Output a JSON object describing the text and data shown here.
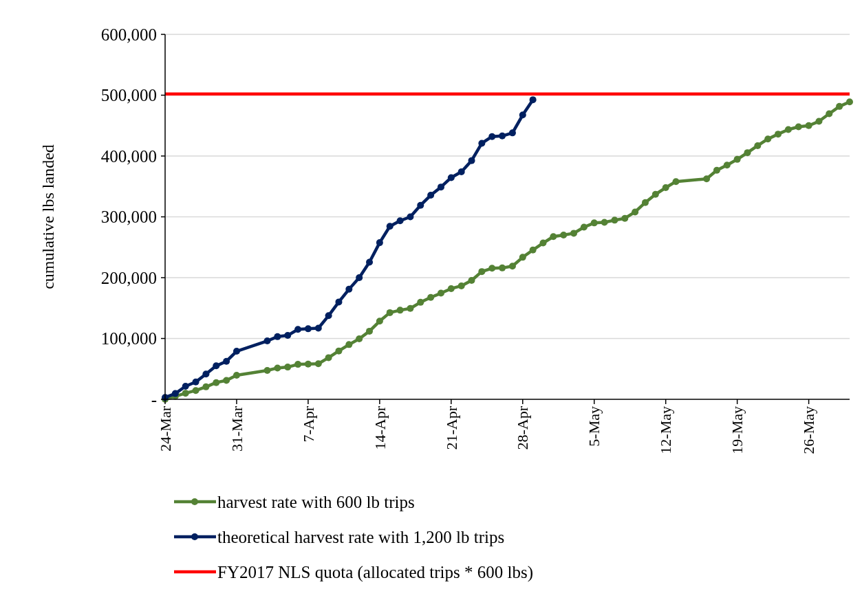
{
  "chart_data": {
    "type": "line",
    "ylabel": "cumulative lbs landed",
    "xlim": [
      "--03-24",
      "--05-30"
    ],
    "xticks": [
      {
        "value": "--03-24",
        "label": "24-Mar"
      },
      {
        "value": "--03-31",
        "label": "31-Mar"
      },
      {
        "value": "--04-07",
        "label": "7-Apr"
      },
      {
        "value": "--04-14",
        "label": "14-Apr"
      },
      {
        "value": "--04-21",
        "label": "21-Apr"
      },
      {
        "value": "--04-28",
        "label": "28-Apr"
      },
      {
        "value": "--05-05",
        "label": "5-May"
      },
      {
        "value": "--05-12",
        "label": "12-May"
      },
      {
        "value": "--05-19",
        "label": "19-May"
      },
      {
        "value": "--05-26",
        "label": "26-May"
      }
    ],
    "ylim": [
      0,
      600000
    ],
    "yticks": [
      {
        "value": 0,
        "label": "-"
      },
      {
        "value": 100000,
        "label": "100,000"
      },
      {
        "value": 200000,
        "label": "200,000"
      },
      {
        "value": 300000,
        "label": "300,000"
      },
      {
        "value": 400000,
        "label": "400,000"
      },
      {
        "value": 500000,
        "label": "500,000"
      },
      {
        "value": 600000,
        "label": "600,000"
      }
    ],
    "grid": "y",
    "marker": "circle",
    "legend": "bottom",
    "series": [
      {
        "name": "harvest rate with 600 lb trips",
        "color": "#548235",
        "x": [
          "--03-24",
          "--03-25",
          "--03-26",
          "--03-27",
          "--03-28",
          "--03-29",
          "--03-30",
          "--03-31",
          "--04-03",
          "--04-04",
          "--04-05",
          "--04-06",
          "--04-07",
          "--04-08",
          "--04-09",
          "--04-10",
          "--04-11",
          "--04-12",
          "--04-13",
          "--04-14",
          "--04-15",
          "--04-16",
          "--04-17",
          "--04-18",
          "--04-19",
          "--04-20",
          "--04-21",
          "--04-22",
          "--04-23",
          "--04-24",
          "--04-25",
          "--04-26",
          "--04-27",
          "--04-28",
          "--04-29",
          "--04-30",
          "--05-01",
          "--05-02",
          "--05-03",
          "--05-04",
          "--05-05",
          "--05-06",
          "--05-07",
          "--05-08",
          "--05-09",
          "--05-10",
          "--05-11",
          "--05-12",
          "--05-13",
          "--05-16",
          "--05-17",
          "--05-18",
          "--05-19",
          "--05-20",
          "--05-21",
          "--05-22",
          "--05-23",
          "--05-24",
          "--05-25",
          "--05-26",
          "--05-27",
          "--05-28",
          "--05-29",
          "--05-30"
        ],
        "values": [
          0,
          5000,
          10000,
          14500,
          20500,
          27500,
          31000,
          39500,
          47500,
          51500,
          53000,
          57500,
          58000,
          58500,
          68500,
          79500,
          90000,
          99500,
          112000,
          128500,
          142500,
          146500,
          149500,
          159500,
          167500,
          174500,
          182000,
          186500,
          195500,
          210000,
          215500,
          216000,
          219000,
          233500,
          245500,
          257000,
          267500,
          270000,
          273000,
          283000,
          290000,
          291000,
          294500,
          297500,
          308000,
          323500,
          337000,
          348000,
          358000,
          362500,
          376500,
          385000,
          394500,
          405500,
          417000,
          428000,
          436000,
          443500,
          448000,
          450000,
          457000,
          469500,
          481500,
          489000
        ]
      },
      {
        "name": "theoretical harvest rate with 1,200 lb trips",
        "color": "#002060",
        "x": [
          "--03-24",
          "--03-25",
          "--03-26",
          "--03-27",
          "--03-28",
          "--03-29",
          "--03-30",
          "--03-31",
          "--04-03",
          "--04-04",
          "--04-05",
          "--04-06",
          "--04-07",
          "--04-08",
          "--04-09",
          "--04-10",
          "--04-11",
          "--04-12",
          "--04-13",
          "--04-14",
          "--04-15",
          "--04-16",
          "--04-17",
          "--04-18",
          "--04-19",
          "--04-20",
          "--04-21",
          "--04-22",
          "--04-23",
          "--04-24",
          "--04-25",
          "--04-26",
          "--04-27",
          "--04-28",
          "--04-29"
        ],
        "values": [
          3000,
          9500,
          21500,
          28500,
          41500,
          55000,
          62500,
          79000,
          96000,
          103000,
          105000,
          115000,
          116000,
          117000,
          137500,
          160000,
          181000,
          200000,
          225500,
          257500,
          284500,
          293500,
          300000,
          319000,
          335500,
          349000,
          364500,
          374000,
          392500,
          421000,
          432000,
          433000,
          438000,
          467500,
          492500
        ]
      }
    ],
    "ref_lines": [
      {
        "axis": "y",
        "value": 502000,
        "label": "FY2017 NLS quota (allocated trips * 600 lbs)",
        "color": "#ff0000"
      }
    ]
  }
}
